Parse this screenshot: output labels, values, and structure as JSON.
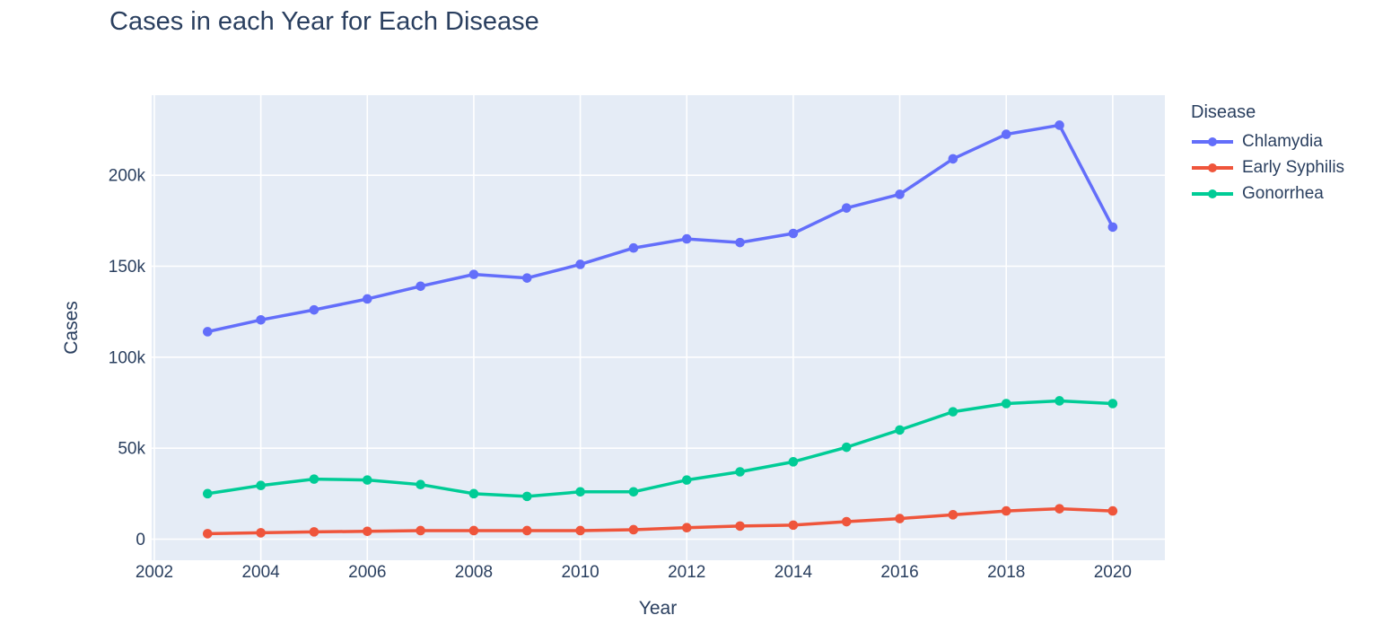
{
  "title": "Cases in each Year for Each Disease",
  "colors": {
    "font": "#2a3f5f",
    "plot_background": "#e5ecf6",
    "gridline": "#ffffff",
    "page_background": "#ffffff",
    "chlamydia": "#636efa",
    "early_syphilis": "#ef553b",
    "gonorrhea": "#00cc96"
  },
  "chart_data": {
    "type": "line",
    "title": "Cases in each Year for Each Disease",
    "xlabel": "Year",
    "ylabel": "Cases",
    "legend_title": "Disease",
    "legend_position": "right",
    "grid": true,
    "x": [
      2003,
      2004,
      2005,
      2006,
      2007,
      2008,
      2009,
      2010,
      2011,
      2012,
      2013,
      2014,
      2015,
      2016,
      2017,
      2018,
      2019,
      2020
    ],
    "series": [
      {
        "name": "Chlamydia",
        "color": "#636efa",
        "values": [
          114000,
          120500,
          126000,
          132000,
          139000,
          145500,
          143500,
          151000,
          160000,
          165000,
          163000,
          168000,
          182000,
          189500,
          209000,
          222500,
          227500,
          171500
        ]
      },
      {
        "name": "Early Syphilis",
        "color": "#ef553b",
        "values": [
          3000,
          3500,
          4000,
          4300,
          4700,
          4700,
          4700,
          4700,
          5200,
          6300,
          7200,
          7700,
          9600,
          11300,
          13400,
          15500,
          16700,
          15500
        ]
      },
      {
        "name": "Gonorrhea",
        "color": "#00cc96",
        "values": [
          25000,
          29500,
          33000,
          32500,
          30000,
          25000,
          23500,
          26000,
          26000,
          32500,
          37000,
          42500,
          50500,
          60000,
          70000,
          74500,
          76000,
          74500
        ]
      }
    ],
    "x_ticks": [
      2002,
      2004,
      2006,
      2008,
      2010,
      2012,
      2014,
      2016,
      2018,
      2020
    ],
    "x_tick_labels": [
      "2002",
      "2004",
      "2006",
      "2008",
      "2010",
      "2012",
      "2014",
      "2016",
      "2018",
      "2020"
    ],
    "y_ticks": [
      0,
      50000,
      100000,
      150000,
      200000
    ],
    "y_tick_labels": [
      "0",
      "50k",
      "100k",
      "150k",
      "200k"
    ],
    "xlim": [
      2001.95,
      2020.98
    ],
    "ylim": [
      -11600,
      244000
    ]
  }
}
